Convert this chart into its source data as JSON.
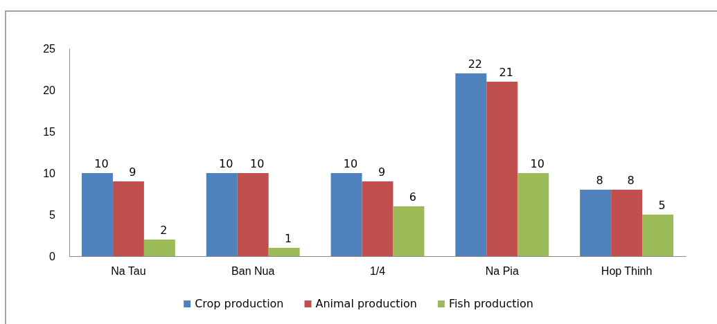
{
  "chart_data": {
    "type": "bar",
    "categories": [
      "Na Tau",
      "Ban Nua",
      "1/4",
      "Na Pia",
      "Hop Thinh"
    ],
    "series": [
      {
        "name": "Crop production",
        "color": "#4f81bd",
        "values": [
          10,
          10,
          10,
          22,
          8
        ]
      },
      {
        "name": "Animal production",
        "color": "#c0504d",
        "values": [
          9,
          10,
          9,
          21,
          8
        ]
      },
      {
        "name": "Fish production",
        "color": "#9bbb59",
        "values": [
          2,
          1,
          6,
          10,
          5
        ]
      }
    ],
    "ylim": [
      0,
      25
    ],
    "yticks": [
      0,
      5,
      10,
      15,
      20,
      25
    ],
    "grid": false,
    "legend": "bottom",
    "data_labels": true
  }
}
